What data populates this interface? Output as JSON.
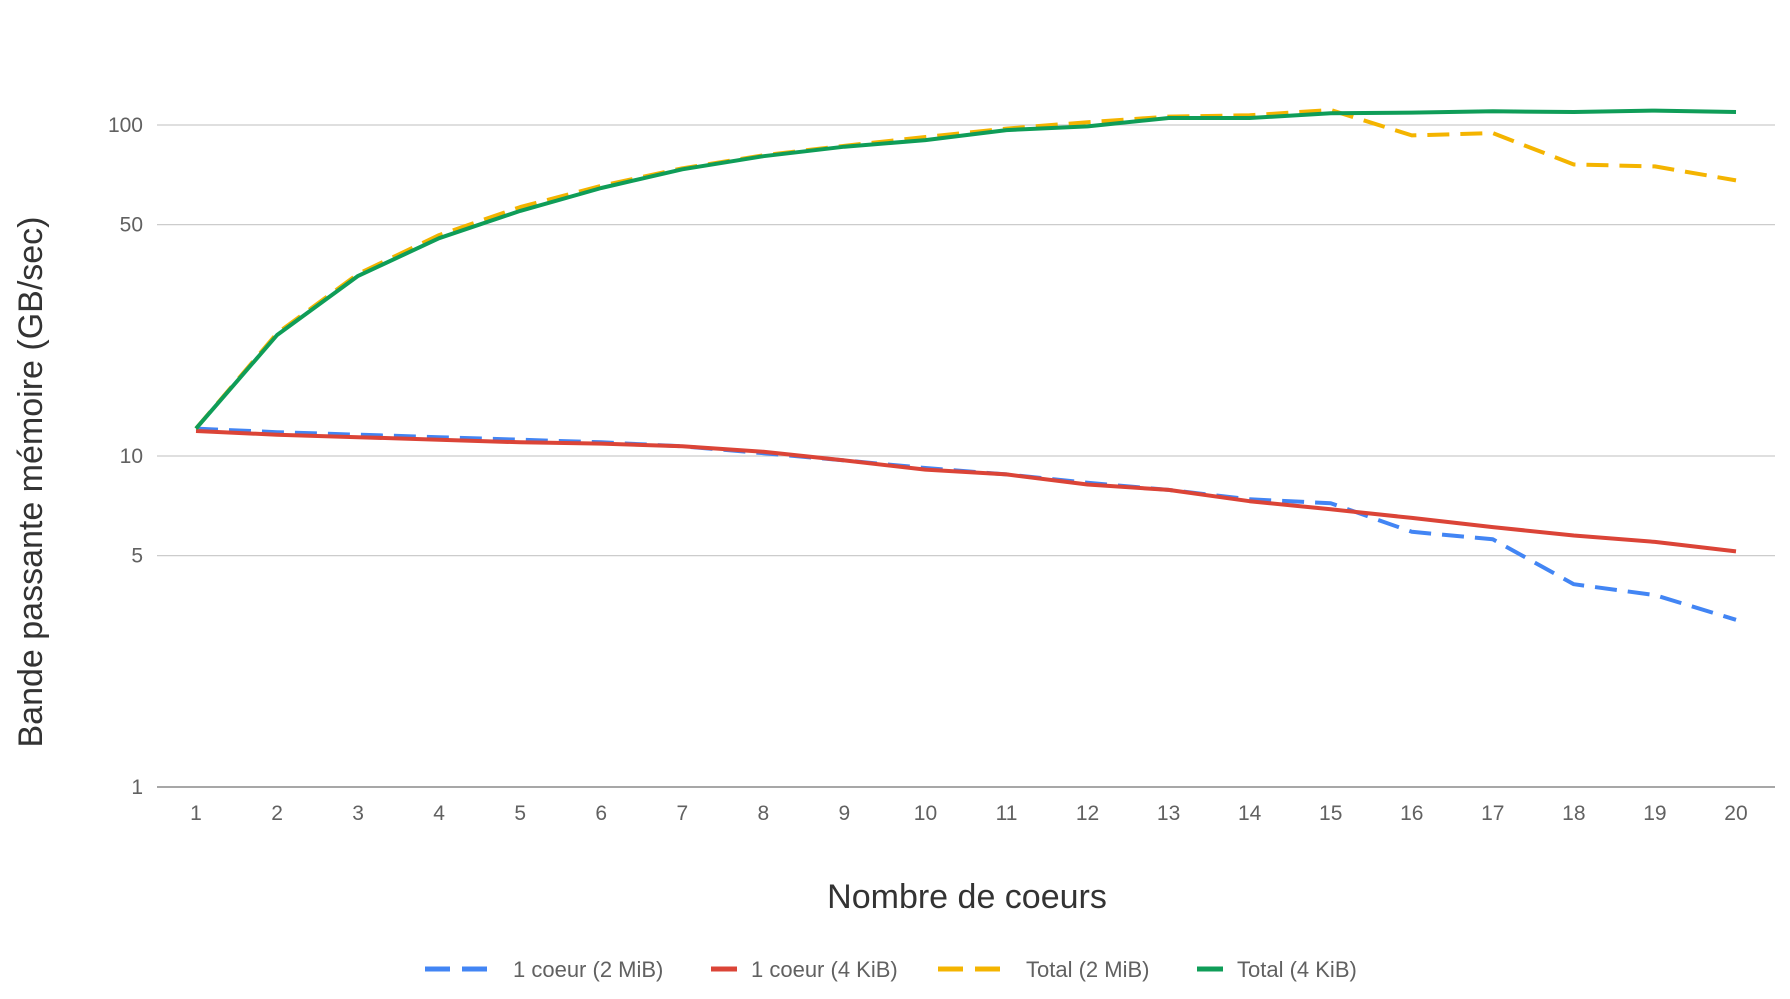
{
  "chart_data": {
    "type": "line",
    "title": "",
    "xlabel": "Nombre de coeurs",
    "ylabel": "Bande passante mémoire  (GB/sec)",
    "yscale": "log",
    "ylim": [
      1,
      160
    ],
    "yticks": [
      1,
      5,
      10,
      50,
      100
    ],
    "ytick_labels": [
      "1",
      "5",
      "10",
      "50",
      "100"
    ],
    "x": [
      1,
      2,
      3,
      4,
      5,
      6,
      7,
      8,
      9,
      10,
      11,
      12,
      13,
      14,
      15,
      16,
      17,
      18,
      19,
      20
    ],
    "xtick_labels": [
      "1",
      "2",
      "3",
      "4",
      "5",
      "6",
      "7",
      "8",
      "9",
      "10",
      "11",
      "12",
      "13",
      "14",
      "15",
      "16",
      "17",
      "18",
      "19",
      "20"
    ],
    "grid": true,
    "legend_position": "bottom",
    "series": [
      {
        "name": "1 coeur (2 MiB)",
        "color": "#4285F4",
        "dash": true,
        "values": [
          12.1,
          11.8,
          11.6,
          11.4,
          11.2,
          11.0,
          10.7,
          10.2,
          9.7,
          9.2,
          8.8,
          8.3,
          7.9,
          7.4,
          7.2,
          5.9,
          5.6,
          4.1,
          3.8,
          3.2
        ]
      },
      {
        "name": "1 coeur (4 KiB)",
        "color": "#DB4437",
        "dash": false,
        "values": [
          11.9,
          11.6,
          11.4,
          11.2,
          11.0,
          10.9,
          10.7,
          10.3,
          9.7,
          9.1,
          8.8,
          8.2,
          7.9,
          7.3,
          6.9,
          6.5,
          6.1,
          5.75,
          5.5,
          5.15
        ]
      },
      {
        "name": "Total (2 MiB)",
        "color": "#F4B400",
        "dash": true,
        "values": [
          12.1,
          23.5,
          35.5,
          46.5,
          56.5,
          65.5,
          74.0,
          81.0,
          86.5,
          92.0,
          97.5,
          102.0,
          106.0,
          107.0,
          111.0,
          93.0,
          94.5,
          76.0,
          75.0,
          68.0
        ]
      },
      {
        "name": "Total (4 KiB)",
        "color": "#0F9D58",
        "dash": false,
        "values": [
          12.1,
          23.2,
          35.0,
          45.5,
          55.0,
          64.5,
          73.5,
          80.5,
          86.0,
          90.0,
          96.5,
          99.0,
          105.0,
          105.0,
          108.5,
          109.0,
          110.0,
          109.5,
          110.5,
          109.5
        ]
      }
    ]
  }
}
